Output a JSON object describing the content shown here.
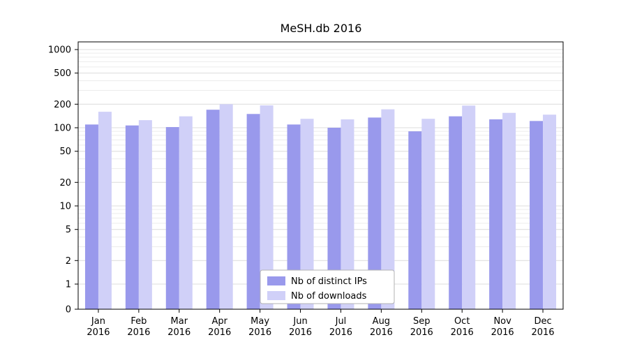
{
  "chart_data": {
    "type": "bar",
    "title": "MeSH.db 2016",
    "categories": [
      "Jan",
      "Feb",
      "Mar",
      "Apr",
      "May",
      "Jun",
      "Jul",
      "Aug",
      "Sep",
      "Oct",
      "Nov",
      "Dec"
    ],
    "year_label": "2016",
    "series": [
      {
        "name": "Nb of distinct IPs",
        "color": "#9999ec",
        "values": [
          110,
          107,
          102,
          170,
          150,
          110,
          100,
          135,
          90,
          140,
          128,
          122
        ]
      },
      {
        "name": "Nb of downloads",
        "color": "#d0d0f8",
        "values": [
          160,
          125,
          140,
          200,
          193,
          130,
          128,
          172,
          130,
          192,
          155,
          147
        ]
      }
    ],
    "yscale": "symlog",
    "yticks": [
      0,
      1,
      2,
      5,
      10,
      20,
      50,
      100,
      200,
      500,
      1000
    ],
    "ylim": [
      0,
      1000
    ],
    "xlabel": "",
    "ylabel": "",
    "grid": true,
    "legend_position": "lower center",
    "colors": {
      "axis": "#000000",
      "grid_major": "#dcdcdc",
      "grid_minor": "#ececec",
      "text": "#000000",
      "legend_border": "#b3b3b3",
      "legend_bg": "#ffffff"
    }
  }
}
